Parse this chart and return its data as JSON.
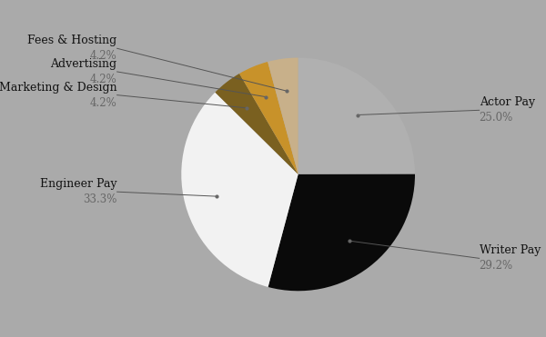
{
  "labels": [
    "Actor Pay",
    "Writer Pay",
    "Engineer Pay",
    "Marketing & Design",
    "Advertising",
    "Fees & Hosting"
  ],
  "values": [
    25.0,
    29.2,
    33.3,
    4.2,
    4.2,
    4.2
  ],
  "colors": [
    "#b0b0b0",
    "#0a0a0a",
    "#f2f2f2",
    "#7a6020",
    "#c8922a",
    "#c8b08a"
  ],
  "background_color": "#aaaaaa",
  "font_family": "serif",
  "font_size": 9,
  "pct_font_size": 8.5,
  "label_color": "#111111",
  "pct_color": "#666666",
  "line_color": "#555555",
  "dot_color": "#666666"
}
